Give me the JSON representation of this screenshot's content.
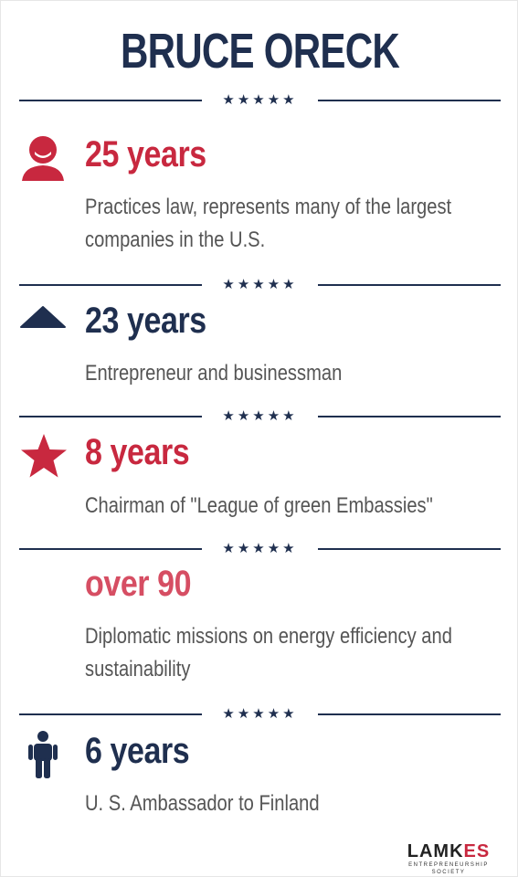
{
  "title": "BRUCE ORECK",
  "stars": "★★★★★",
  "items": [
    {
      "icon": "person-head-icon",
      "stat": "25 years",
      "description": "Practices law, represents many of the largest companies in the U.S."
    },
    {
      "icon": "triangle-icon",
      "stat": "23 years",
      "description": "Entrepreneur and businessman"
    },
    {
      "icon": "star-icon",
      "stat": "8 years",
      "description": "Chairman of \"League of green Embassies\""
    },
    {
      "icon": "",
      "stat": "over 90",
      "description": "Diplomatic missions on energy efficiency and sustainability"
    },
    {
      "icon": "person-standing-icon",
      "stat": "6 years",
      "description": "U. S. Ambassador to Finland"
    }
  ],
  "logo": {
    "name_main": "LAMK",
    "name_accent": "ES",
    "subtitle": "ENTREPRENEURSHIP SOCIETY"
  },
  "colors": {
    "navy": "#1f2f4f",
    "red": "#c8283f",
    "pink": "#d64e63",
    "text": "#555555"
  }
}
